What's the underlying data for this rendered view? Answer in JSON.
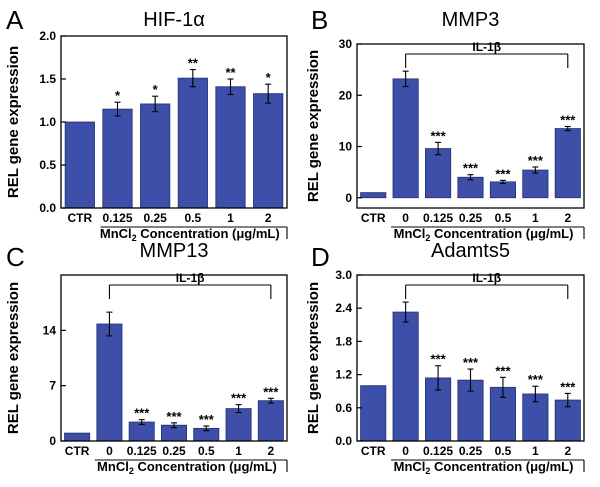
{
  "colors": {
    "bar": "#3d4fa8",
    "bar_edge": "#23306e",
    "ink": "#000000"
  },
  "chart_data": [
    {
      "panel": "A",
      "type": "bar",
      "title": "HIF-1α",
      "ylabel": "REL gene expression",
      "xlabel": {
        "prefix": "MnCl",
        "sub": "2",
        "suffix": " Concentration (μg/mL)"
      },
      "categories": [
        "CTR",
        "0.125",
        "0.25",
        "0.5",
        "1",
        "2"
      ],
      "values": [
        1.0,
        1.15,
        1.21,
        1.51,
        1.41,
        1.33
      ],
      "errors": [
        0,
        0.08,
        0.09,
        0.1,
        0.09,
        0.11
      ],
      "significance": [
        "",
        "*",
        "*",
        "**",
        "**",
        "*"
      ],
      "bracket": null,
      "ylim": [
        0,
        2.0
      ],
      "yticks": [
        "0.0",
        "0.5",
        "1.0",
        "1.5",
        "2.0"
      ],
      "ytick_values": [
        0,
        0.5,
        1.0,
        1.5,
        2.0
      ]
    },
    {
      "panel": "B",
      "type": "bar",
      "title": "MMP3",
      "ylabel": "REL gene expression",
      "xlabel": {
        "prefix": "MnCl",
        "sub": "2",
        "suffix": " Concentration (μg/mL)"
      },
      "categories": [
        "CTR",
        "0",
        "0.125",
        "0.25",
        "0.5",
        "1",
        "2"
      ],
      "values": [
        1.0,
        23.2,
        9.6,
        4.0,
        3.1,
        5.4,
        13.5
      ],
      "errors": [
        0,
        1.5,
        1.2,
        0.5,
        0.3,
        0.6,
        0.4
      ],
      "significance": [
        "",
        "",
        "***",
        "***",
        "***",
        "***",
        "***"
      ],
      "bracket": {
        "label": "IL-1β",
        "from": 1,
        "to": 6
      },
      "ylim": [
        -2,
        30
      ],
      "yticks": [
        "0",
        "10",
        "20",
        "30"
      ],
      "ytick_values": [
        0,
        10,
        20,
        30
      ]
    },
    {
      "panel": "C",
      "type": "bar",
      "title": "MMP13",
      "ylabel": "REL gene expression",
      "xlabel": {
        "prefix": "MnCl",
        "sub": "2",
        "suffix": " Concentration (μg/mL)"
      },
      "categories": [
        "CTR",
        "0",
        "0.125",
        "0.25",
        "0.5",
        "1",
        "2"
      ],
      "values": [
        1.0,
        14.8,
        2.4,
        2.0,
        1.6,
        4.1,
        5.1
      ],
      "errors": [
        0,
        1.5,
        0.3,
        0.3,
        0.3,
        0.5,
        0.3
      ],
      "significance": [
        "",
        "",
        "***",
        "***",
        "***",
        "***",
        "***"
      ],
      "bracket": {
        "label": "IL-1β",
        "from": 1,
        "to": 6
      },
      "ylim": [
        0,
        21
      ],
      "yticks": [
        "0",
        "7",
        "14"
      ],
      "ytick_values": [
        0,
        7,
        14
      ]
    },
    {
      "panel": "D",
      "type": "bar",
      "title": "Adamts5",
      "ylabel": "REL gene expression",
      "xlabel": {
        "prefix": "MnCl",
        "sub": "2",
        "suffix": " Concentration (μg/mL)"
      },
      "categories": [
        "CTR",
        "0",
        "0.125",
        "0.25",
        "0.5",
        "1",
        "2"
      ],
      "values": [
        1.0,
        2.33,
        1.14,
        1.1,
        0.97,
        0.85,
        0.74
      ],
      "errors": [
        0,
        0.18,
        0.22,
        0.2,
        0.18,
        0.14,
        0.12
      ],
      "significance": [
        "",
        "",
        "***",
        "***",
        "***",
        "***",
        "***"
      ],
      "bracket": {
        "label": "IL-1β",
        "from": 1,
        "to": 6
      },
      "ylim": [
        0,
        3.0
      ],
      "yticks": [
        "0.0",
        "0.6",
        "1.2",
        "1.8",
        "2.4",
        "3.0"
      ],
      "ytick_values": [
        0,
        0.6,
        1.2,
        1.8,
        2.4,
        3.0
      ]
    }
  ]
}
